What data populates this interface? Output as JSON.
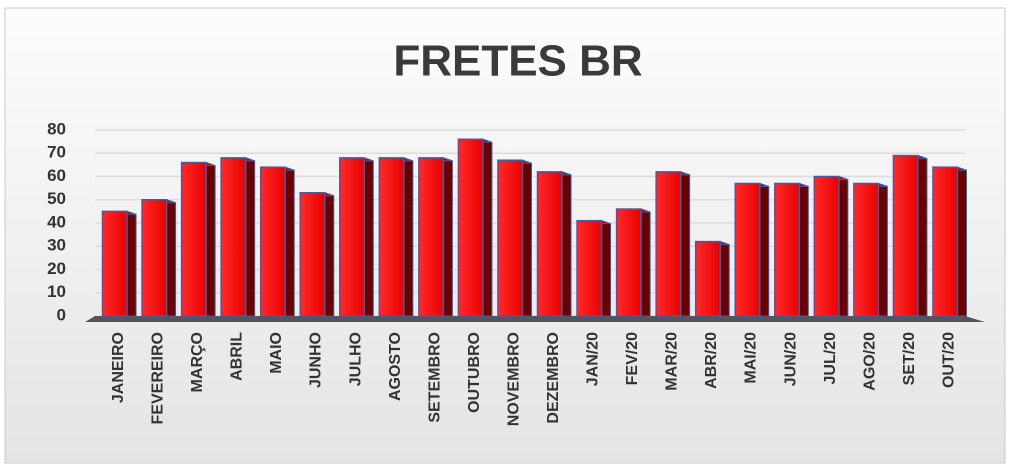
{
  "chart_data": {
    "type": "bar",
    "title": "FRETES BR",
    "categories": [
      "JANEIRO",
      "FEVEREIRO",
      "MARÇO",
      "ABRIL",
      "MAIO",
      "JUNHO",
      "JULHO",
      "AGOSTO",
      "SETEMBRO",
      "OUTUBRO",
      "NOVEMBRO",
      "DEZEMBRO",
      "JAN/20",
      "FEV/20",
      "MAR/20",
      "ABR/20",
      "MAI/20",
      "JUN/20",
      "JUL/20",
      "AGO/20",
      "SET/20",
      "OUT/20"
    ],
    "values": [
      45,
      50,
      66,
      68,
      64,
      53,
      68,
      68,
      68,
      76,
      67,
      62,
      41,
      46,
      62,
      32,
      57,
      57,
      60,
      57,
      69,
      64
    ],
    "color": "#ff1a1a",
    "ylim": [
      0,
      80
    ],
    "yticks": [
      0,
      10,
      20,
      30,
      40,
      50,
      60,
      70,
      80
    ],
    "grid": true
  }
}
